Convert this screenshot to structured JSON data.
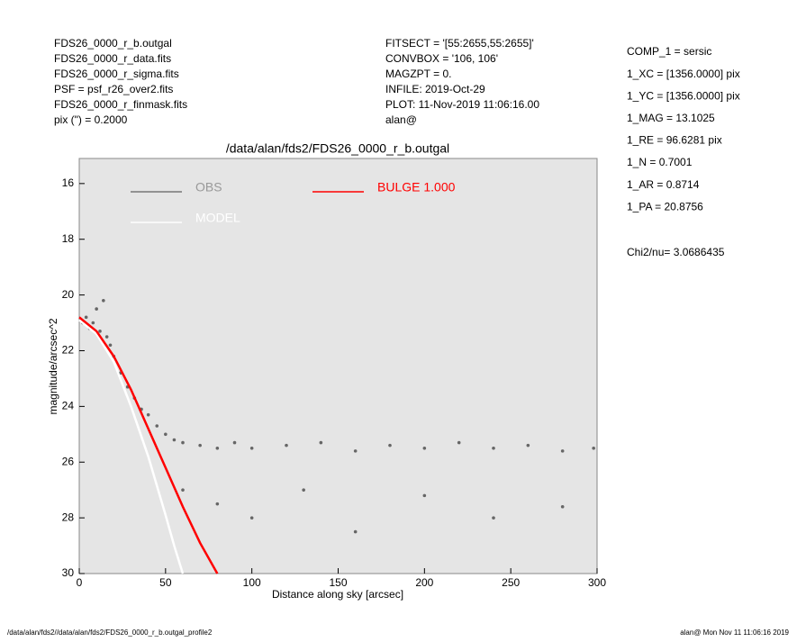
{
  "header": {
    "left": [
      "FDS26_0000_r_b.outgal",
      "FDS26_0000_r_data.fits",
      "FDS26_0000_r_sigma.fits",
      "PSF     = psf_r26_over2.fits",
      "FDS26_0000_r_finmask.fits",
      "pix (\") =  0.2000"
    ],
    "middle": [
      "FITSECT = '[55:2655,55:2655]'",
      "CONVBOX = '106, 106'",
      "MAGZPT  =               0.",
      "INFILE: 2019-Oct-29",
      "PLOT: 11-Nov-2019 11:06:16.00",
      "alan@"
    ],
    "params": [
      "COMP_1  = sersic",
      "1_XC    = [1356.0000] pix",
      "1_YC    = [1356.0000] pix",
      "1_MAG   = 13.1025",
      "1_RE    = 96.6281 pix",
      "1_N     = 0.7001",
      "1_AR    = 0.8714",
      "1_PA    = 20.8756"
    ],
    "chi2": "Chi2/nu=       3.0686435"
  },
  "footer": {
    "left": "/data/alan/fds2//data/alan/fds2/FDS26_0000_r_b.outgal_profile2",
    "right": "alan@  Mon Nov 11 11:06:16 2019"
  },
  "chart_data": {
    "type": "scatter",
    "title": "/data/alan/fds2/FDS26_0000_r_b.outgal",
    "x_label": "Distance along sky [arcsec]",
    "y_label": "magnitude/arcsec^2",
    "xlim": [
      0,
      300
    ],
    "xticks": [
      0,
      50,
      100,
      150,
      200,
      250,
      300
    ],
    "ylim": [
      15.1,
      30
    ],
    "y_inverted": true,
    "yticks": [
      16,
      18,
      20,
      22,
      24,
      26,
      28,
      30
    ],
    "series": [
      {
        "name": "OBS",
        "color": "#666666",
        "style": "points",
        "x": [
          2,
          4,
          6,
          8,
          10,
          12,
          14,
          16,
          18,
          20,
          24,
          28,
          32,
          36,
          40,
          45,
          50,
          55,
          60,
          70,
          80,
          90,
          100,
          120,
          140,
          160,
          180,
          200,
          220,
          240,
          260,
          280,
          298,
          60,
          80,
          100,
          130,
          160,
          200,
          240,
          280
        ],
        "values": [
          21.0,
          20.8,
          21.2,
          21.0,
          20.5,
          21.3,
          20.2,
          21.5,
          21.8,
          22.2,
          22.8,
          23.3,
          23.7,
          24.1,
          24.3,
          24.7,
          25.0,
          25.2,
          25.3,
          25.4,
          25.5,
          25.3,
          25.5,
          25.4,
          25.3,
          25.6,
          25.4,
          25.5,
          25.3,
          25.5,
          25.4,
          25.6,
          25.5,
          27.0,
          27.5,
          28.0,
          27.0,
          28.5,
          27.2,
          28.0,
          27.6
        ]
      },
      {
        "name": "MODEL",
        "color": "#ffffff",
        "style": "line",
        "x": [
          0,
          10,
          20,
          30,
          40,
          50,
          55,
          60
        ],
        "values": [
          20.9,
          21.4,
          22.4,
          24.0,
          25.8,
          27.9,
          29.0,
          30.0
        ]
      },
      {
        "name": "BULGE  1.000",
        "color": "#ff0000",
        "style": "line",
        "x": [
          0,
          10,
          20,
          30,
          40,
          50,
          60,
          70,
          80
        ],
        "values": [
          20.8,
          21.3,
          22.2,
          23.4,
          24.8,
          26.2,
          27.6,
          28.9,
          30.0
        ]
      }
    ]
  }
}
